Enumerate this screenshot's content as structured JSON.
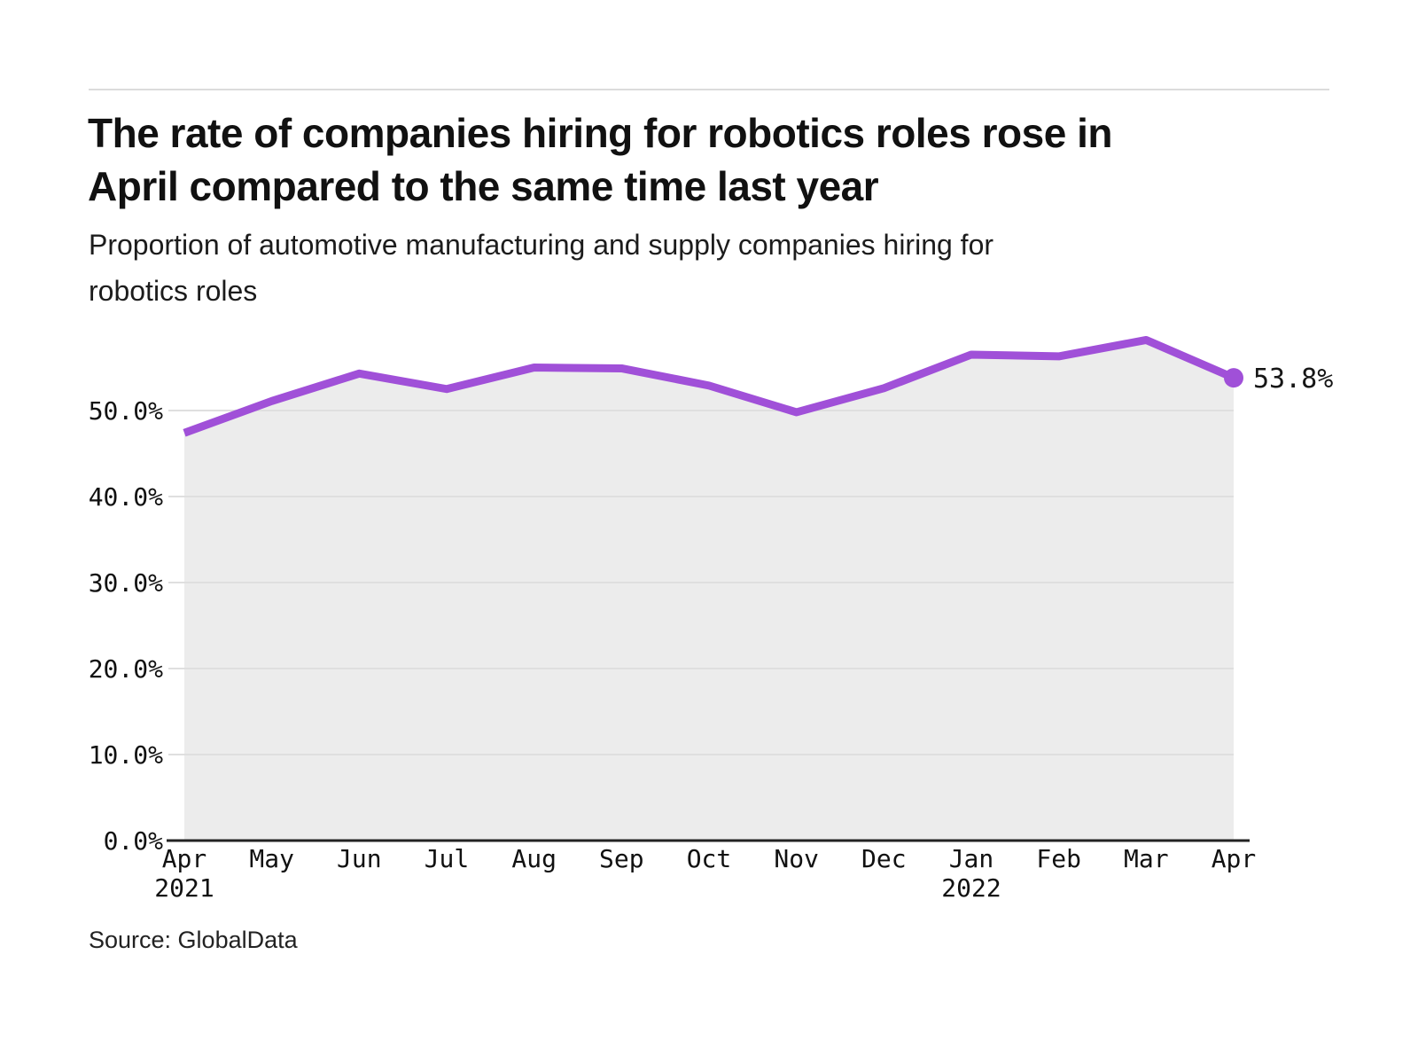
{
  "page": {
    "title_line1": "The rate of companies hiring for robotics roles rose in",
    "title_line2": "April compared to the same time last year",
    "subtitle_line1": "Proportion of automotive manufacturing and supply companies hiring for",
    "subtitle_line2": "robotics roles",
    "source": "Source: GlobalData"
  },
  "chart_data": {
    "type": "area",
    "title": "The rate of companies hiring for robotics roles rose in April compared to the same time last year",
    "subtitle": "Proportion of automotive manufacturing and supply companies hiring for robotics roles",
    "categories": [
      "Apr 2021",
      "May",
      "Jun",
      "Jul",
      "Aug",
      "Sep",
      "Oct",
      "Nov",
      "Dec",
      "Jan 2022",
      "Feb",
      "Mar",
      "Apr 2022"
    ],
    "x_tick_labels": [
      "Apr",
      "May",
      "Jun",
      "Jul",
      "Aug",
      "Sep",
      "Oct",
      "Nov",
      "Dec",
      "Jan",
      "Feb",
      "Mar",
      "Apr"
    ],
    "x_year_labels": [
      {
        "index": 0,
        "label": "2021"
      },
      {
        "index": 9,
        "label": "2022"
      }
    ],
    "values": [
      47.4,
      51.1,
      54.3,
      52.5,
      55.0,
      54.9,
      52.9,
      49.8,
      52.6,
      56.5,
      56.3,
      58.2,
      53.8
    ],
    "end_label": "53.8%",
    "y_ticks": [
      {
        "value": 0,
        "label": "0.0%"
      },
      {
        "value": 10,
        "label": "10.0%"
      },
      {
        "value": 20,
        "label": "20.0%"
      },
      {
        "value": 30,
        "label": "30.0%"
      },
      {
        "value": 40,
        "label": "40.0%"
      },
      {
        "value": 50,
        "label": "50.0%"
      }
    ],
    "ylim": [
      0,
      60
    ],
    "grid": true,
    "legend": "none",
    "colors": {
      "line": "#a050d8",
      "point": "#a050d8",
      "area": "#ececec",
      "grid": "#dfdfdf",
      "axis": "#222222",
      "tick_text": "#111111",
      "end_label_text": "#161616"
    }
  }
}
